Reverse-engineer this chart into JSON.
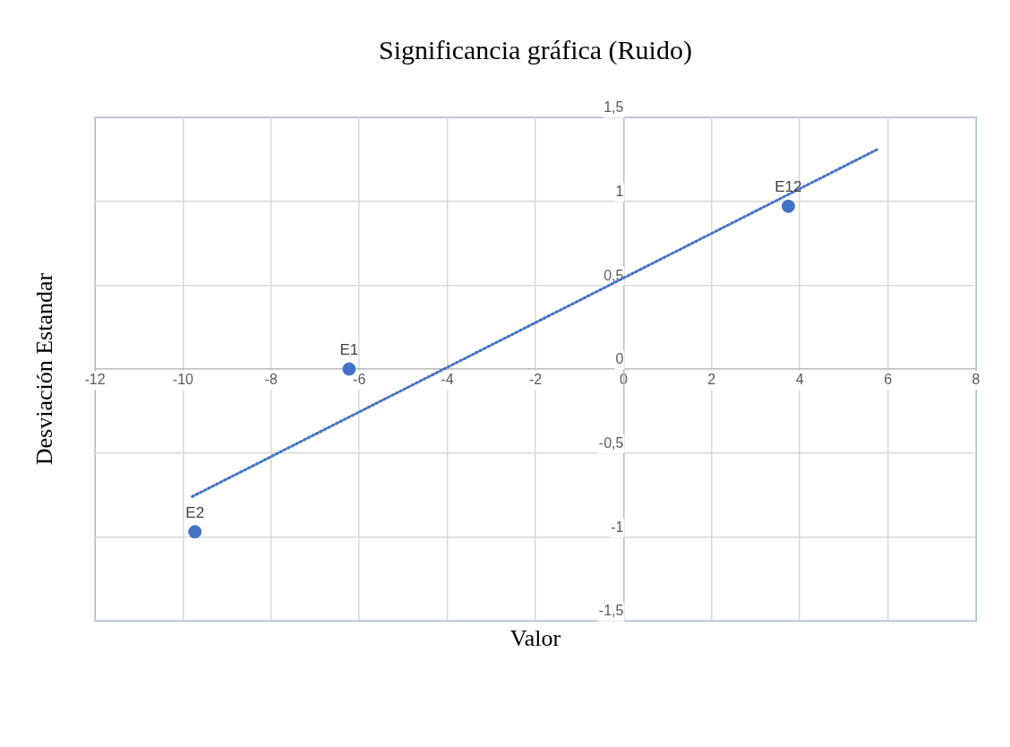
{
  "chart_data": {
    "type": "scatter",
    "title": "Significancia gráfica (Ruido)",
    "xlabel": "Valor",
    "ylabel": "Desviación Estandar",
    "xlim": [
      -12,
      8
    ],
    "xticks": [
      -12,
      -10,
      -8,
      -6,
      -4,
      -2,
      0,
      2,
      4,
      6,
      8
    ],
    "ylim": [
      -1.5,
      1.5
    ],
    "yticks": [
      {
        "value": -1.5,
        "label": "-1,5"
      },
      {
        "value": -1,
        "label": "-1"
      },
      {
        "value": -0.5,
        "label": "-0,5"
      },
      {
        "value": 0,
        "label": "0"
      },
      {
        "value": 0.5,
        "label": "0,5"
      },
      {
        "value": 1,
        "label": "1"
      },
      {
        "value": 1.5,
        "label": "1,5"
      }
    ],
    "grid": true,
    "legend": false,
    "series": [
      {
        "type": "scatter",
        "color": "#4472c4",
        "marker": "circle",
        "x": [
          -6.23,
          -9.73,
          3.74
        ],
        "values": [
          0,
          -0.97,
          0.97
        ]
      },
      {
        "type": "line",
        "color": "#4472c4",
        "line_style": "dotted",
        "marker": "none",
        "x": [
          -9.79,
          5.77
        ],
        "values": [
          -0.76,
          1.31
        ]
      }
    ],
    "annotations": [
      {
        "text": "E1",
        "x": -6.23,
        "y": 0
      },
      {
        "text": "E2",
        "x": -9.73,
        "y": -0.97
      },
      {
        "text": "E12",
        "x": 3.74,
        "y": 0.97
      }
    ]
  }
}
